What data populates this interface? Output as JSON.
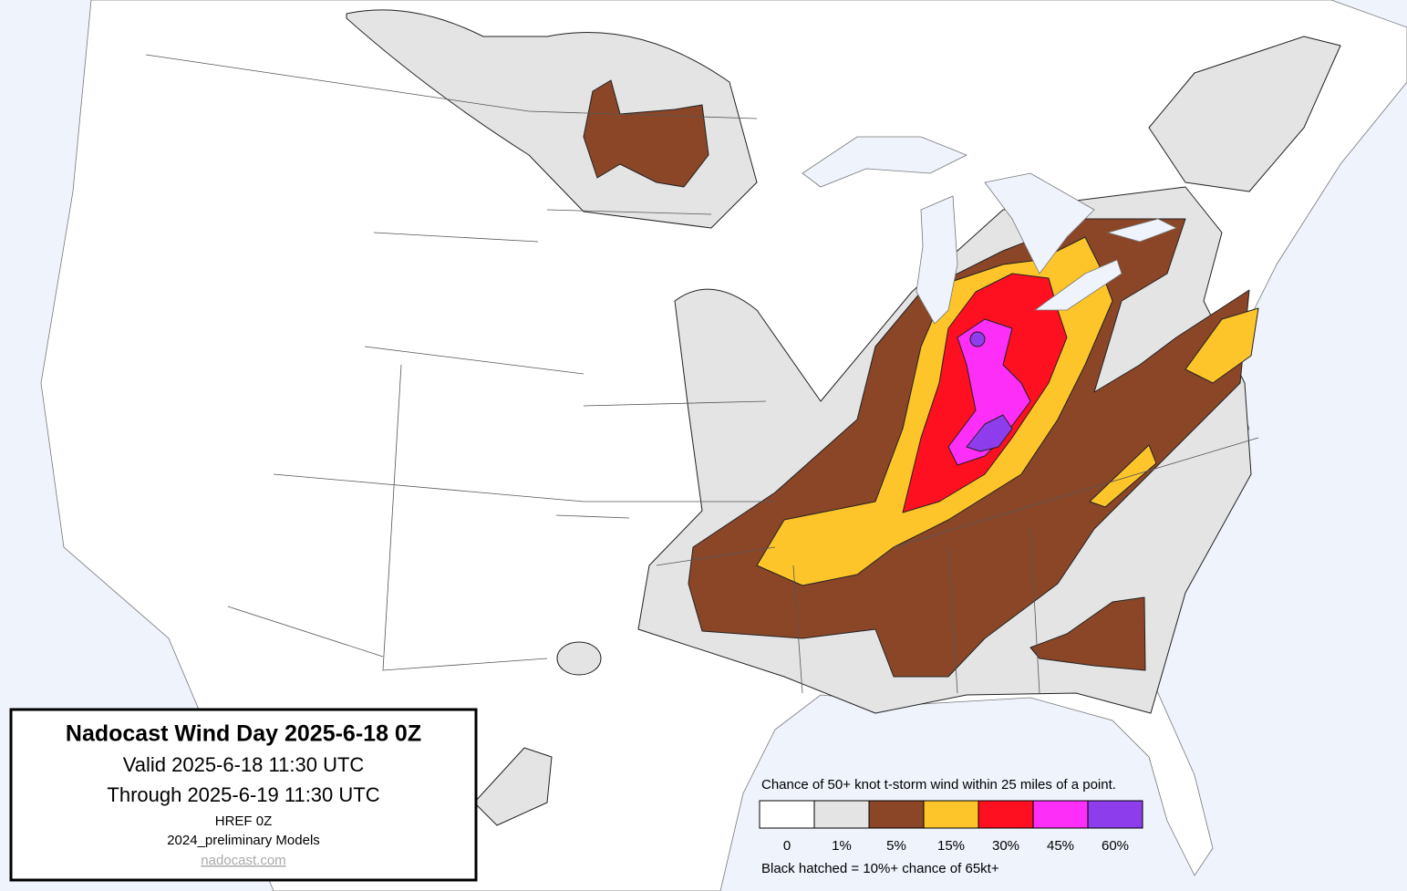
{
  "info_box": {
    "title": "Nadocast Wind Day 2025-6-18 0Z",
    "valid": "Valid 2025-6-18 11:30 UTC",
    "through": "Through 2025-6-19 11:30 UTC",
    "model": "HREF 0Z",
    "models": "2024_preliminary Models",
    "site": "nadocast.com"
  },
  "legend": {
    "caption": "Chance of 50+ knot t-storm wind within 25 miles of a point.",
    "items": [
      {
        "label": "0",
        "color": "#ffffff"
      },
      {
        "label": "1%",
        "color": "#e4e4e4"
      },
      {
        "label": "5%",
        "color": "#8b4628"
      },
      {
        "label": "15%",
        "color": "#fec52b"
      },
      {
        "label": "30%",
        "color": "#fe1020"
      },
      {
        "label": "45%",
        "color": "#fc2ef8"
      },
      {
        "label": "60%",
        "color": "#8e3ded"
      }
    ],
    "footnote": "Black hatched = 10%+ chance of 65kt+"
  }
}
